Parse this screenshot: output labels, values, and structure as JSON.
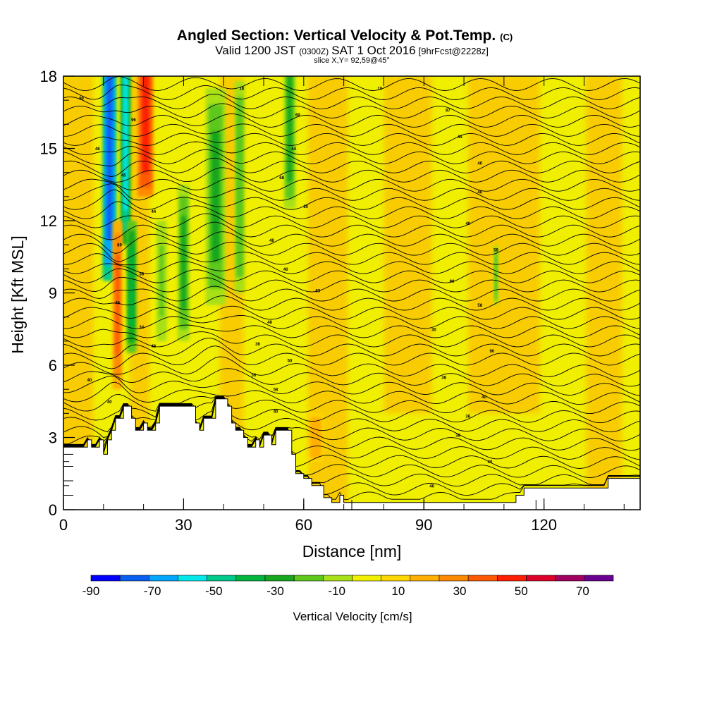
{
  "title": {
    "main": "Angled Section: Vertical Velocity & Pot.Temp.",
    "main_suffix": "(C)",
    "valid_pre": "Valid 1200 JST",
    "valid_tz": "(0300Z)",
    "valid_date": "SAT 1 Oct 2016",
    "valid_fcst": "[9hrFcst@2228z]",
    "slice": "slice X,Y= 92,59@45°"
  },
  "chart_data": {
    "type": "heatmap",
    "xlabel": "Distance [nm]",
    "ylabel": "Height [Kft MSL]",
    "xlim": [
      0,
      144
    ],
    "ylim": [
      0,
      18
    ],
    "x_ticks": [
      {
        "value": 0,
        "label": "0"
      },
      {
        "value": 30,
        "label": "30"
      },
      {
        "value": 60,
        "label": "60"
      },
      {
        "value": 90,
        "label": "90"
      },
      {
        "value": 120,
        "label": "120"
      }
    ],
    "y_ticks": [
      {
        "value": 0,
        "label": "0"
      },
      {
        "value": 3,
        "label": "3"
      },
      {
        "value": 6,
        "label": "6"
      },
      {
        "value": 9,
        "label": "9"
      },
      {
        "value": 12,
        "label": "12"
      },
      {
        "value": 15,
        "label": "15"
      },
      {
        "value": 18,
        "label": "18"
      }
    ],
    "background_value": 0,
    "velocity_features": [
      {
        "x": 11.5,
        "y_bottom": 9.5,
        "y_top": 18,
        "width": 3.5,
        "value": -80
      },
      {
        "x": 15.5,
        "y_bottom": 11,
        "y_top": 18,
        "width": 2.5,
        "value": -55
      },
      {
        "x": 13.5,
        "y_bottom": 5,
        "y_top": 12,
        "width": 2.5,
        "value": 35
      },
      {
        "x": 20.5,
        "y_bottom": 13,
        "y_top": 18,
        "width": 4,
        "value": 50
      },
      {
        "x": 17,
        "y_bottom": 6.5,
        "y_top": 12,
        "width": 2.5,
        "value": -40
      },
      {
        "x": 30,
        "y_bottom": 7,
        "y_top": 13.5,
        "width": 3,
        "value": -25
      },
      {
        "x": 24.5,
        "y_bottom": 7,
        "y_top": 12,
        "width": 2.5,
        "value": -15
      },
      {
        "x": 38,
        "y_bottom": 8.5,
        "y_top": 17.5,
        "width": 5,
        "value": -25
      },
      {
        "x": 44,
        "y_bottom": 9,
        "y_top": 17.8,
        "width": 2.5,
        "value": -20
      },
      {
        "x": 56.5,
        "y_bottom": 12.5,
        "y_top": 18,
        "width": 3,
        "value": -25
      },
      {
        "x": 63,
        "y_bottom": 2,
        "y_top": 4,
        "width": 4,
        "value": 20
      },
      {
        "x": 108,
        "y_bottom": 8.5,
        "y_top": 11,
        "width": 1,
        "value": -20
      }
    ],
    "terrain": [
      [
        0,
        2.6
      ],
      [
        6,
        2.6
      ],
      [
        6,
        2.9
      ],
      [
        7,
        2.9
      ],
      [
        7,
        2.6
      ],
      [
        9,
        2.6
      ],
      [
        9,
        2.9
      ],
      [
        10,
        2.9
      ],
      [
        10,
        2.3
      ],
      [
        11,
        2.3
      ],
      [
        11,
        2.9
      ],
      [
        12,
        2.9
      ],
      [
        12,
        3.3
      ],
      [
        13,
        3.3
      ],
      [
        13,
        3.8
      ],
      [
        15,
        3.8
      ],
      [
        15,
        4.3
      ],
      [
        17,
        4.3
      ],
      [
        17,
        3.8
      ],
      [
        18,
        3.8
      ],
      [
        18,
        3.3
      ],
      [
        20,
        3.3
      ],
      [
        20,
        3.6
      ],
      [
        21,
        3.6
      ],
      [
        21,
        3.3
      ],
      [
        23,
        3.3
      ],
      [
        23,
        3.6
      ],
      [
        24,
        3.6
      ],
      [
        24,
        4.3
      ],
      [
        33,
        4.3
      ],
      [
        33,
        3.6
      ],
      [
        34,
        3.6
      ],
      [
        34,
        3.3
      ],
      [
        35,
        3.3
      ],
      [
        35,
        3.8
      ],
      [
        38,
        3.8
      ],
      [
        38,
        4.6
      ],
      [
        41,
        4.6
      ],
      [
        41,
        4.3
      ],
      [
        42,
        4.3
      ],
      [
        42,
        3.6
      ],
      [
        43,
        3.6
      ],
      [
        43,
        3.3
      ],
      [
        45,
        3.3
      ],
      [
        45,
        3.0
      ],
      [
        46,
        3.0
      ],
      [
        46,
        2.6
      ],
      [
        48,
        2.6
      ],
      [
        48,
        2.9
      ],
      [
        49,
        2.9
      ],
      [
        49,
        2.6
      ],
      [
        50,
        2.6
      ],
      [
        50,
        3.1
      ],
      [
        52,
        3.1
      ],
      [
        52,
        2.7
      ],
      [
        53,
        2.7
      ],
      [
        53,
        3.3
      ],
      [
        57,
        3.3
      ],
      [
        57,
        2.3
      ],
      [
        58,
        2.3
      ],
      [
        58,
        1.5
      ],
      [
        60,
        1.5
      ],
      [
        60,
        1.3
      ],
      [
        62,
        1.3
      ],
      [
        62,
        1.0
      ],
      [
        65,
        1.0
      ],
      [
        65,
        0.5
      ],
      [
        67,
        0.5
      ],
      [
        67,
        0.3
      ],
      [
        69,
        0.3
      ],
      [
        69,
        0.6
      ],
      [
        70,
        0.6
      ],
      [
        70,
        0.3
      ],
      [
        113,
        0.3
      ],
      [
        113,
        0.6
      ],
      [
        115,
        0.6
      ],
      [
        115,
        0.9
      ],
      [
        136,
        0.9
      ],
      [
        136,
        1.3
      ],
      [
        144,
        1.3
      ]
    ],
    "isentrope_count": 46,
    "isentrope_labels": [
      {
        "x": 4.5,
        "y": 17.1,
        "text": "90"
      },
      {
        "x": 8.5,
        "y": 15.0,
        "text": "48"
      },
      {
        "x": 17.5,
        "y": 16.2,
        "text": "96"
      },
      {
        "x": 15,
        "y": 13.9,
        "text": "45"
      },
      {
        "x": 22.5,
        "y": 12.4,
        "text": "44"
      },
      {
        "x": 14,
        "y": 11.0,
        "text": "89"
      },
      {
        "x": 19.5,
        "y": 9.8,
        "text": "38"
      },
      {
        "x": 13.5,
        "y": 8.6,
        "text": "46"
      },
      {
        "x": 19.5,
        "y": 7.6,
        "text": "34"
      },
      {
        "x": 22.5,
        "y": 6.8,
        "text": "48"
      },
      {
        "x": 6.5,
        "y": 5.4,
        "text": "40"
      },
      {
        "x": 11.5,
        "y": 4.5,
        "text": "40"
      },
      {
        "x": 44.5,
        "y": 17.5,
        "text": "18"
      },
      {
        "x": 58.5,
        "y": 16.4,
        "text": "69"
      },
      {
        "x": 57.5,
        "y": 15.0,
        "text": "44"
      },
      {
        "x": 54.5,
        "y": 13.8,
        "text": "68"
      },
      {
        "x": 60.5,
        "y": 12.6,
        "text": "30"
      },
      {
        "x": 52,
        "y": 11.2,
        "text": "48"
      },
      {
        "x": 55.5,
        "y": 10.0,
        "text": "40"
      },
      {
        "x": 63.5,
        "y": 9.1,
        "text": "83"
      },
      {
        "x": 51.5,
        "y": 7.8,
        "text": "48"
      },
      {
        "x": 48.5,
        "y": 6.9,
        "text": "36"
      },
      {
        "x": 56.5,
        "y": 6.2,
        "text": "50"
      },
      {
        "x": 47.5,
        "y": 5.6,
        "text": "36"
      },
      {
        "x": 53,
        "y": 5.0,
        "text": "58"
      },
      {
        "x": 53,
        "y": 4.1,
        "text": "40"
      },
      {
        "x": 79,
        "y": 17.5,
        "text": "10"
      },
      {
        "x": 96,
        "y": 16.6,
        "text": "97"
      },
      {
        "x": 99,
        "y": 15.5,
        "text": "44"
      },
      {
        "x": 104,
        "y": 14.4,
        "text": "40"
      },
      {
        "x": 104,
        "y": 13.2,
        "text": "40"
      },
      {
        "x": 101,
        "y": 11.9,
        "text": "40"
      },
      {
        "x": 108,
        "y": 10.8,
        "text": "58"
      },
      {
        "x": 97,
        "y": 9.5,
        "text": "90"
      },
      {
        "x": 104,
        "y": 8.5,
        "text": "58"
      },
      {
        "x": 92.5,
        "y": 7.5,
        "text": "30"
      },
      {
        "x": 107,
        "y": 6.6,
        "text": "90"
      },
      {
        "x": 95,
        "y": 5.5,
        "text": "38"
      },
      {
        "x": 105,
        "y": 4.7,
        "text": "40"
      },
      {
        "x": 101,
        "y": 3.9,
        "text": "36"
      },
      {
        "x": 98.5,
        "y": 3.1,
        "text": "38"
      },
      {
        "x": 106.5,
        "y": 2.0,
        "text": "40"
      },
      {
        "x": 92,
        "y": 1.0,
        "text": "40"
      }
    ],
    "colorbar": {
      "label": "Vertical Velocity [cm/s]",
      "colors": [
        "#0000ff",
        "#0a5ef0",
        "#00a6ff",
        "#00e8ea",
        "#00c98c",
        "#00b440",
        "#18a61e",
        "#5dc81a",
        "#a8e019",
        "#f0f000",
        "#ffd700",
        "#ffb000",
        "#ff8a00",
        "#ff5a00",
        "#ff1e00",
        "#dd0028",
        "#a00060",
        "#6a0090"
      ],
      "bounds": [
        -90,
        80
      ],
      "tick_labels": [
        "-90",
        "-70",
        "-50",
        "-30",
        "-10",
        "10",
        "30",
        "50",
        "70"
      ],
      "tick_values": [
        -90,
        -70,
        -50,
        -30,
        -10,
        10,
        30,
        50,
        70
      ]
    }
  }
}
